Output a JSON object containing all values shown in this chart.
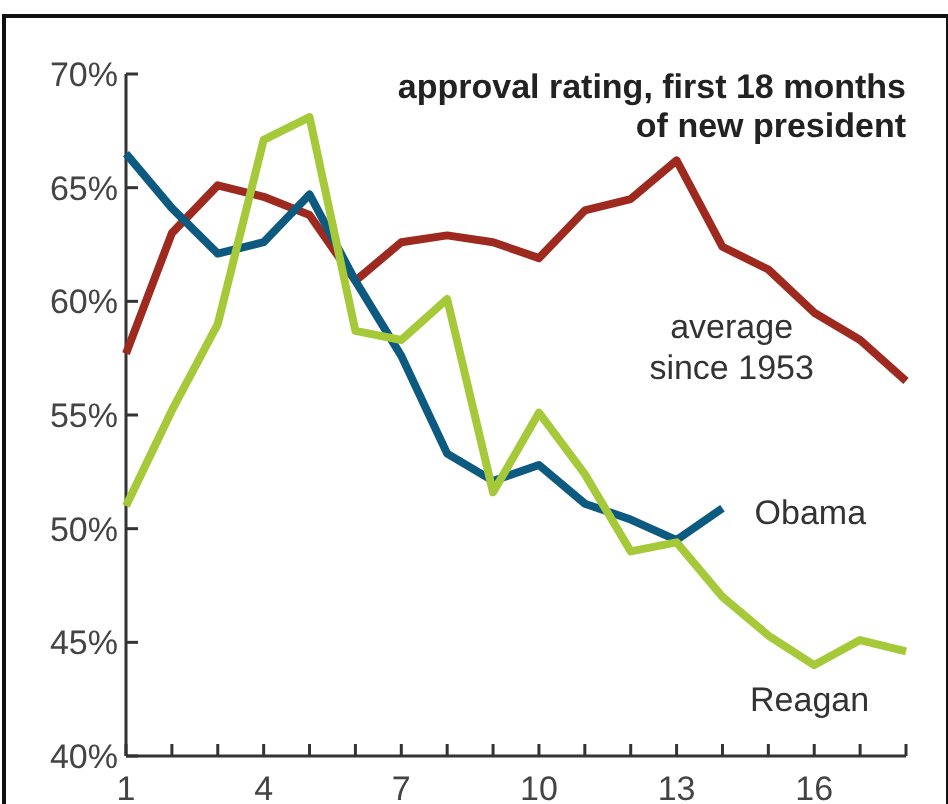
{
  "chart_data": {
    "type": "line",
    "title": "approval rating, first 18 months\nof new president",
    "x": [
      1,
      2,
      3,
      4,
      5,
      6,
      7,
      8,
      9,
      10,
      11,
      12,
      13,
      14,
      15,
      16,
      17,
      18
    ],
    "series": [
      {
        "name": "average\nsince 1953",
        "color": "#9e2a1f",
        "values": [
          57.7,
          63.0,
          65.1,
          64.6,
          63.8,
          60.9,
          62.6,
          62.9,
          62.6,
          61.9,
          64.0,
          64.5,
          66.2,
          62.4,
          61.4,
          59.5,
          58.3,
          56.5
        ]
      },
      {
        "name": "Obama",
        "color": "#0d5a80",
        "values": [
          66.5,
          64.1,
          62.1,
          62.6,
          64.7,
          60.9,
          57.6,
          53.3,
          52.1,
          52.8,
          51.1,
          50.4,
          49.5,
          50.9,
          null,
          null,
          null,
          null
        ]
      },
      {
        "name": "Reagan",
        "color": "#a6c93a",
        "values": [
          51.0,
          55.2,
          59.0,
          67.1,
          68.1,
          58.7,
          58.3,
          60.1,
          51.6,
          55.1,
          52.4,
          49.0,
          49.4,
          47.0,
          45.3,
          44.0,
          45.1,
          44.6
        ]
      }
    ],
    "xlim": [
      1,
      18
    ],
    "xticks": [
      1,
      {
        "value": 2,
        "label": null
      },
      {
        "value": 3,
        "label": null
      },
      4,
      {
        "value": 5,
        "label": null
      },
      {
        "value": 6,
        "label": null
      },
      7,
      {
        "value": 8,
        "label": null
      },
      {
        "value": 9,
        "label": null
      },
      10,
      {
        "value": 11,
        "label": null
      },
      {
        "value": 12,
        "label": null
      },
      13,
      {
        "value": 14,
        "label": null
      },
      {
        "value": 15,
        "label": null
      },
      16,
      {
        "value": 17,
        "label": null
      },
      {
        "value": 18,
        "label": null
      }
    ],
    "ylim": [
      40,
      70
    ],
    "yticks": [
      {
        "value": 40,
        "label": "40%"
      },
      {
        "value": 45,
        "label": "45%"
      },
      {
        "value": 50,
        "label": "50%"
      },
      {
        "value": 55,
        "label": "55%"
      },
      {
        "value": 60,
        "label": "60%"
      },
      {
        "value": 65,
        "label": "65%"
      },
      {
        "value": 70,
        "label": "70%"
      }
    ],
    "grid": false,
    "marker": "none",
    "line_style": "solid"
  }
}
